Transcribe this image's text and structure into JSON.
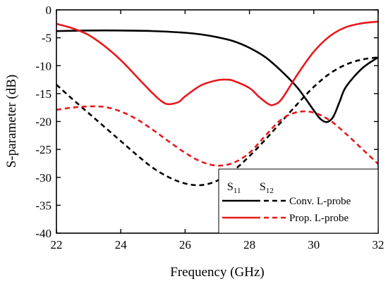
{
  "chart_data": {
    "type": "line",
    "xlabel": "Frequency (GHz)",
    "ylabel": "S-parameter (dB)",
    "xlim": [
      22,
      32
    ],
    "ylim": [
      -40,
      0
    ],
    "xticks": [
      22,
      24,
      26,
      28,
      30,
      32
    ],
    "yticks": [
      0,
      -5,
      -10,
      -15,
      -20,
      -25,
      -30,
      -35,
      -40
    ],
    "grid": false,
    "legend": {
      "placement": "bottom-right",
      "header_s11": {
        "base": "S",
        "sub": "11"
      },
      "header_s12": {
        "base": "S",
        "sub": "12"
      },
      "rows": [
        {
          "label": "Conv. L-probe",
          "color": "#000000"
        },
        {
          "label": "Prop. L-probe",
          "color": "#e8181c"
        }
      ]
    },
    "series": [
      {
        "group": "Conv. L-probe",
        "param": "S11",
        "color": "#000000",
        "dash": "solid",
        "x": [
          22,
          23,
          24,
          25,
          26,
          26.5,
          27,
          27.5,
          28,
          28.5,
          29,
          29.5,
          30,
          30.2,
          30.4,
          30.6,
          30.8,
          31,
          31.5,
          32
        ],
        "y": [
          -3.8,
          -3.7,
          -3.7,
          -3.8,
          -4.1,
          -4.4,
          -4.9,
          -5.6,
          -6.8,
          -8.5,
          -11,
          -14,
          -18,
          -19.5,
          -20.1,
          -19.2,
          -16.5,
          -13.8,
          -10.5,
          -8.5
        ]
      },
      {
        "group": "Conv. L-probe",
        "param": "S12",
        "color": "#000000",
        "dash": "dashed",
        "x": [
          22,
          22.5,
          23,
          23.5,
          24,
          24.5,
          25,
          25.5,
          26,
          26.5,
          27,
          27.5,
          28,
          28.5,
          29,
          29.5,
          30,
          30.5,
          31,
          31.5,
          32
        ],
        "y": [
          -13.4,
          -16,
          -18.5,
          -21,
          -23.5,
          -26,
          -28.3,
          -30,
          -31.1,
          -31.4,
          -30.6,
          -28.8,
          -26.2,
          -23.2,
          -20,
          -16.8,
          -13.8,
          -11.4,
          -9.8,
          -8.9,
          -8.5
        ]
      },
      {
        "group": "Prop. L-probe",
        "param": "S11",
        "color": "#e8181c",
        "dash": "solid",
        "x": [
          22,
          22.5,
          23,
          23.5,
          24,
          24.5,
          25,
          25.3,
          25.5,
          25.8,
          26,
          26.5,
          27,
          27.3,
          27.5,
          28,
          28.3,
          28.6,
          28.75,
          29,
          29.5,
          30,
          30.5,
          31,
          31.5,
          32
        ],
        "y": [
          -2.5,
          -3.3,
          -4.5,
          -6.5,
          -9,
          -12,
          -15,
          -16.5,
          -16.9,
          -16.5,
          -15.5,
          -13.5,
          -12.6,
          -12.5,
          -12.7,
          -14,
          -15.6,
          -16.9,
          -17,
          -16,
          -11.5,
          -7.5,
          -4.7,
          -3.1,
          -2.4,
          -2.1
        ]
      },
      {
        "group": "Prop. L-probe",
        "param": "S12",
        "color": "#e8181c",
        "dash": "dashed",
        "x": [
          22,
          22.5,
          23,
          23.5,
          24,
          24.5,
          25,
          25.5,
          26,
          26.5,
          27,
          27.5,
          28,
          28.5,
          29,
          29.5,
          30,
          30.5,
          31,
          31.5,
          32
        ],
        "y": [
          -17.9,
          -17.5,
          -17.3,
          -17.4,
          -18.2,
          -19.6,
          -21.5,
          -23.6,
          -25.6,
          -27.2,
          -27.9,
          -27.4,
          -25.6,
          -22.5,
          -19.6,
          -18.3,
          -18.4,
          -19.8,
          -22.2,
          -24.9,
          -27.6
        ]
      }
    ]
  }
}
